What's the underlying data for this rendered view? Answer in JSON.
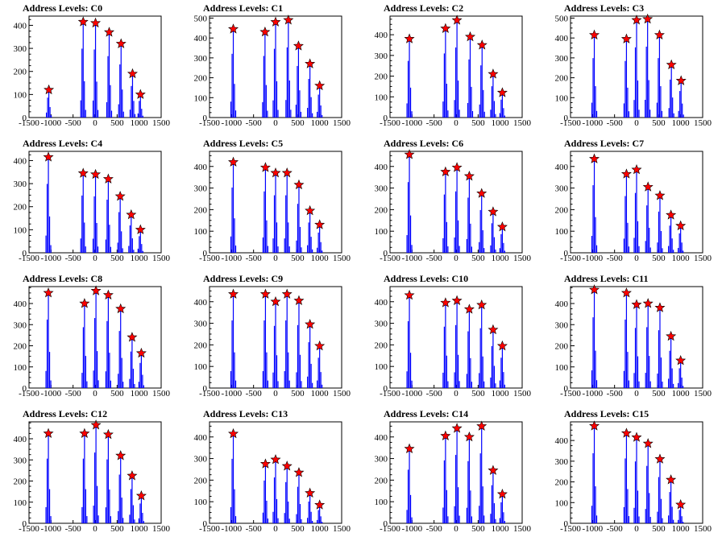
{
  "chart_data": [
    {
      "type": "bar",
      "title": "Address Levels: C0",
      "xlim": [
        -1500,
        1500
      ],
      "ylim": [
        0,
        440
      ],
      "xticks": [
        "-1500",
        "-1000",
        "-500",
        "0",
        "500",
        "1000",
        "1500"
      ],
      "yticks": [
        "0",
        "100",
        "200",
        "300",
        "400"
      ],
      "peaks": [
        {
          "x": -1050,
          "y": 120
        },
        {
          "x": -270,
          "y": 415
        },
        {
          "x": 10,
          "y": 410
        },
        {
          "x": 320,
          "y": 370
        },
        {
          "x": 590,
          "y": 320
        },
        {
          "x": 850,
          "y": 190
        },
        {
          "x": 1030,
          "y": 100
        }
      ]
    },
    {
      "type": "bar",
      "title": "Address Levels: C1",
      "xlim": [
        -1500,
        1500
      ],
      "ylim": [
        0,
        510
      ],
      "xticks": [
        "-1500",
        "-1000",
        "-500",
        "0",
        "500",
        "1000",
        "1500"
      ],
      "yticks": [
        "0",
        "100",
        "200",
        "300",
        "400",
        "500"
      ],
      "peaks": [
        {
          "x": -960,
          "y": 445
        },
        {
          "x": -240,
          "y": 430
        },
        {
          "x": 0,
          "y": 480
        },
        {
          "x": 290,
          "y": 490
        },
        {
          "x": 520,
          "y": 360
        },
        {
          "x": 780,
          "y": 270
        },
        {
          "x": 1000,
          "y": 160
        }
      ]
    },
    {
      "type": "bar",
      "title": "Address Levels: C2",
      "xlim": [
        -1500,
        1500
      ],
      "ylim": [
        0,
        490
      ],
      "xticks": [
        "-1500",
        "-1000",
        "-500",
        "0",
        "500",
        "1000",
        "1500"
      ],
      "yticks": [
        "0",
        "100",
        "200",
        "300",
        "400"
      ],
      "peaks": [
        {
          "x": -1060,
          "y": 380
        },
        {
          "x": -240,
          "y": 430
        },
        {
          "x": 20,
          "y": 470
        },
        {
          "x": 320,
          "y": 390
        },
        {
          "x": 590,
          "y": 350
        },
        {
          "x": 840,
          "y": 210
        },
        {
          "x": 1050,
          "y": 120
        }
      ]
    },
    {
      "type": "bar",
      "title": "Address Levels: C3",
      "xlim": [
        -1500,
        1500
      ],
      "ylim": [
        0,
        510
      ],
      "xticks": [
        "-1500",
        "-1000",
        "-500",
        "0",
        "500",
        "1000",
        "1500"
      ],
      "yticks": [
        "0",
        "100",
        "200",
        "300",
        "400",
        "500"
      ],
      "peaks": [
        {
          "x": -960,
          "y": 415
        },
        {
          "x": -230,
          "y": 395
        },
        {
          "x": 0,
          "y": 490
        },
        {
          "x": 250,
          "y": 495
        },
        {
          "x": 520,
          "y": 415
        },
        {
          "x": 790,
          "y": 265
        },
        {
          "x": 1010,
          "y": 185
        }
      ]
    },
    {
      "type": "bar",
      "title": "Address Levels: C4",
      "xlim": [
        -1500,
        1500
      ],
      "ylim": [
        0,
        440
      ],
      "xticks": [
        "-1500",
        "-1000",
        "-500",
        "0",
        "500",
        "1000",
        "1500"
      ],
      "yticks": [
        "0",
        "100",
        "200",
        "300",
        "400"
      ],
      "peaks": [
        {
          "x": -1060,
          "y": 415
        },
        {
          "x": -270,
          "y": 345
        },
        {
          "x": 10,
          "y": 340
        },
        {
          "x": 300,
          "y": 320
        },
        {
          "x": 570,
          "y": 245
        },
        {
          "x": 820,
          "y": 165
        },
        {
          "x": 1030,
          "y": 100
        }
      ]
    },
    {
      "type": "bar",
      "title": "Address Levels: C5",
      "xlim": [
        -1500,
        1500
      ],
      "ylim": [
        0,
        470
      ],
      "xticks": [
        "-1500",
        "-1000",
        "-500",
        "0",
        "500",
        "1000",
        "1500"
      ],
      "yticks": [
        "0",
        "100",
        "200",
        "300",
        "400"
      ],
      "peaks": [
        {
          "x": -960,
          "y": 420
        },
        {
          "x": -230,
          "y": 395
        },
        {
          "x": 0,
          "y": 370
        },
        {
          "x": 260,
          "y": 370
        },
        {
          "x": 530,
          "y": 315
        },
        {
          "x": 780,
          "y": 195
        },
        {
          "x": 1000,
          "y": 130
        }
      ]
    },
    {
      "type": "bar",
      "title": "Address Levels: C6",
      "xlim": [
        -1500,
        1500
      ],
      "ylim": [
        0,
        470
      ],
      "xticks": [
        "-1500",
        "-1000",
        "-500",
        "0",
        "500",
        "1000",
        "1500"
      ],
      "yticks": [
        "0",
        "100",
        "200",
        "300",
        "400"
      ],
      "peaks": [
        {
          "x": -1060,
          "y": 455
        },
        {
          "x": -240,
          "y": 375
        },
        {
          "x": 20,
          "y": 395
        },
        {
          "x": 300,
          "y": 355
        },
        {
          "x": 580,
          "y": 275
        },
        {
          "x": 840,
          "y": 190
        },
        {
          "x": 1050,
          "y": 120
        }
      ]
    },
    {
      "type": "bar",
      "title": "Address Levels: C7",
      "xlim": [
        -1500,
        1500
      ],
      "ylim": [
        0,
        470
      ],
      "xticks": [
        "-1500",
        "-1000",
        "-500",
        "0",
        "500",
        "1000",
        "1500"
      ],
      "yticks": [
        "0",
        "100",
        "200",
        "300",
        "400"
      ],
      "peaks": [
        {
          "x": -960,
          "y": 435
        },
        {
          "x": -230,
          "y": 365
        },
        {
          "x": 0,
          "y": 385
        },
        {
          "x": 260,
          "y": 305
        },
        {
          "x": 530,
          "y": 265
        },
        {
          "x": 780,
          "y": 175
        },
        {
          "x": 1000,
          "y": 125
        }
      ]
    },
    {
      "type": "bar",
      "title": "Address Levels: C8",
      "xlim": [
        -1500,
        1500
      ],
      "ylim": [
        0,
        480
      ],
      "xticks": [
        "-1500",
        "-1000",
        "-500",
        "0",
        "500",
        "1000",
        "1500"
      ],
      "yticks": [
        "0",
        "100",
        "200",
        "300",
        "400"
      ],
      "peaks": [
        {
          "x": -1060,
          "y": 450
        },
        {
          "x": -240,
          "y": 400
        },
        {
          "x": 20,
          "y": 460
        },
        {
          "x": 300,
          "y": 440
        },
        {
          "x": 580,
          "y": 375
        },
        {
          "x": 840,
          "y": 240
        },
        {
          "x": 1050,
          "y": 165
        }
      ]
    },
    {
      "type": "bar",
      "title": "Address Levels: C9",
      "xlim": [
        -1500,
        1500
      ],
      "ylim": [
        0,
        470
      ],
      "xticks": [
        "-1500",
        "-1000",
        "-500",
        "0",
        "500",
        "1000",
        "1500"
      ],
      "yticks": [
        "0",
        "100",
        "200",
        "300",
        "400"
      ],
      "peaks": [
        {
          "x": -960,
          "y": 435
        },
        {
          "x": -230,
          "y": 435
        },
        {
          "x": 0,
          "y": 400
        },
        {
          "x": 260,
          "y": 435
        },
        {
          "x": 530,
          "y": 405
        },
        {
          "x": 780,
          "y": 295
        },
        {
          "x": 1000,
          "y": 195
        }
      ]
    },
    {
      "type": "bar",
      "title": "Address Levels: C10",
      "xlim": [
        -1500,
        1500
      ],
      "ylim": [
        0,
        470
      ],
      "xticks": [
        "-1500",
        "-1000",
        "-500",
        "0",
        "500",
        "1000",
        "1500"
      ],
      "yticks": [
        "0",
        "100",
        "200",
        "300",
        "400"
      ],
      "peaks": [
        {
          "x": -1060,
          "y": 430
        },
        {
          "x": -240,
          "y": 395
        },
        {
          "x": 20,
          "y": 405
        },
        {
          "x": 300,
          "y": 365
        },
        {
          "x": 580,
          "y": 385
        },
        {
          "x": 840,
          "y": 270
        },
        {
          "x": 1050,
          "y": 195
        }
      ]
    },
    {
      "type": "bar",
      "title": "Address Levels: C11",
      "xlim": [
        -1500,
        1500
      ],
      "ylim": [
        0,
        480
      ],
      "xticks": [
        "-1500",
        "-1000",
        "-500",
        "0",
        "500",
        "1000",
        "1500"
      ],
      "yticks": [
        "0",
        "100",
        "200",
        "300",
        "400"
      ],
      "peaks": [
        {
          "x": -960,
          "y": 465
        },
        {
          "x": -230,
          "y": 450
        },
        {
          "x": 0,
          "y": 395
        },
        {
          "x": 260,
          "y": 400
        },
        {
          "x": 530,
          "y": 380
        },
        {
          "x": 780,
          "y": 245
        },
        {
          "x": 1000,
          "y": 130
        }
      ]
    },
    {
      "type": "bar",
      "title": "Address Levels: C12",
      "xlim": [
        -1500,
        1500
      ],
      "ylim": [
        0,
        480
      ],
      "xticks": [
        "-1500",
        "-1000",
        "-500",
        "0",
        "500",
        "1000",
        "1500"
      ],
      "yticks": [
        "0",
        "100",
        "200",
        "300",
        "400"
      ],
      "peaks": [
        {
          "x": -1060,
          "y": 425
        },
        {
          "x": -240,
          "y": 425
        },
        {
          "x": 20,
          "y": 465
        },
        {
          "x": 300,
          "y": 420
        },
        {
          "x": 580,
          "y": 320
        },
        {
          "x": 840,
          "y": 225
        },
        {
          "x": 1050,
          "y": 130
        }
      ]
    },
    {
      "type": "bar",
      "title": "Address Levels: C13",
      "xlim": [
        -1500,
        1500
      ],
      "ylim": [
        0,
        470
      ],
      "xticks": [
        "-1500",
        "-1000",
        "-500",
        "0",
        "500",
        "1000",
        "1500"
      ],
      "yticks": [
        "0",
        "100",
        "200",
        "300",
        "400"
      ],
      "peaks": [
        {
          "x": -960,
          "y": 415
        },
        {
          "x": -230,
          "y": 275
        },
        {
          "x": 0,
          "y": 295
        },
        {
          "x": 260,
          "y": 265
        },
        {
          "x": 530,
          "y": 235
        },
        {
          "x": 780,
          "y": 140
        },
        {
          "x": 1000,
          "y": 85
        }
      ]
    },
    {
      "type": "bar",
      "title": "Address Levels: C14",
      "xlim": [
        -1500,
        1500
      ],
      "ylim": [
        0,
        470
      ],
      "xticks": [
        "-1500",
        "-1000",
        "-500",
        "0",
        "500",
        "1000",
        "1500"
      ],
      "yticks": [
        "0",
        "100",
        "200",
        "300",
        "400"
      ],
      "peaks": [
        {
          "x": -1060,
          "y": 345
        },
        {
          "x": -240,
          "y": 405
        },
        {
          "x": 20,
          "y": 440
        },
        {
          "x": 300,
          "y": 400
        },
        {
          "x": 580,
          "y": 450
        },
        {
          "x": 840,
          "y": 245
        },
        {
          "x": 1050,
          "y": 135
        }
      ]
    },
    {
      "type": "bar",
      "title": "Address Levels: C15",
      "xlim": [
        -1500,
        1500
      ],
      "ylim": [
        0,
        490
      ],
      "xticks": [
        "-1500",
        "-1000",
        "-500",
        "0",
        "500",
        "1000",
        "1500"
      ],
      "yticks": [
        "0",
        "100",
        "200",
        "300",
        "400"
      ],
      "peaks": [
        {
          "x": -960,
          "y": 470
        },
        {
          "x": -230,
          "y": 435
        },
        {
          "x": 0,
          "y": 415
        },
        {
          "x": 260,
          "y": 385
        },
        {
          "x": 530,
          "y": 310
        },
        {
          "x": 780,
          "y": 210
        },
        {
          "x": 1000,
          "y": 90
        }
      ]
    }
  ]
}
